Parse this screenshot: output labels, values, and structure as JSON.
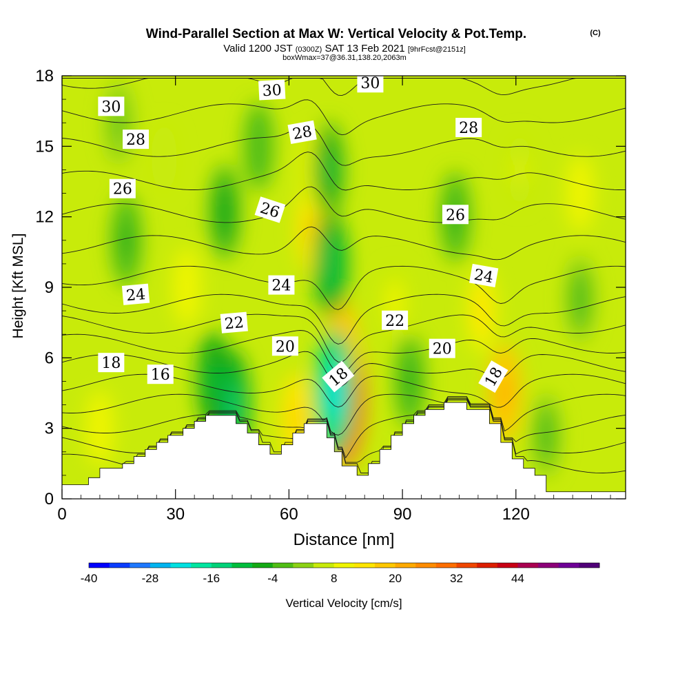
{
  "header": {
    "title": "Wind-Parallel Section at Max W: Vertical Velocity & Pot.Temp.",
    "copyright": "(C)",
    "valid_prefix": "Valid 1200 JST",
    "valid_utc": "(0300Z)",
    "valid_date": "SAT 13 Feb 2021",
    "forecast": "[9hrFcst@2151z]",
    "box_info": "boxWmax=37@36.31,138.20,2063m"
  },
  "chart_data": {
    "type": "heatmap",
    "xlabel": "Distance [nm]",
    "ylabel": "Height [Kft MSL]",
    "xlim": [
      0,
      149
    ],
    "ylim": [
      0,
      18
    ],
    "x_ticks": [
      0,
      30,
      60,
      90,
      120
    ],
    "y_ticks": [
      0,
      3,
      6,
      9,
      12,
      15,
      18
    ],
    "terrain_kft": [
      [
        0,
        0.6
      ],
      [
        7,
        0.6
      ],
      [
        7,
        0.9
      ],
      [
        10,
        0.9
      ],
      [
        10,
        1.3
      ],
      [
        16,
        1.3
      ],
      [
        16,
        1.5
      ],
      [
        19,
        1.5
      ],
      [
        19,
        1.8
      ],
      [
        22,
        1.8
      ],
      [
        22,
        2.1
      ],
      [
        25,
        2.1
      ],
      [
        25,
        2.4
      ],
      [
        28,
        2.4
      ],
      [
        28,
        2.7
      ],
      [
        32,
        2.7
      ],
      [
        32,
        3.0
      ],
      [
        35,
        3.0
      ],
      [
        35,
        3.3
      ],
      [
        38,
        3.3
      ],
      [
        38,
        3.55
      ],
      [
        46,
        3.55
      ],
      [
        46,
        3.2
      ],
      [
        49,
        3.2
      ],
      [
        49,
        2.8
      ],
      [
        52,
        2.8
      ],
      [
        52,
        2.3
      ],
      [
        55,
        2.3
      ],
      [
        55,
        1.9
      ],
      [
        58,
        1.9
      ],
      [
        58,
        2.3
      ],
      [
        61,
        2.3
      ],
      [
        61,
        2.8
      ],
      [
        64,
        2.8
      ],
      [
        64,
        3.2
      ],
      [
        70,
        3.2
      ],
      [
        70,
        2.6
      ],
      [
        72,
        2.6
      ],
      [
        72,
        2.0
      ],
      [
        74,
        2.0
      ],
      [
        74,
        1.4
      ],
      [
        78,
        1.4
      ],
      [
        78,
        1.0
      ],
      [
        81,
        1.0
      ],
      [
        81,
        1.5
      ],
      [
        84,
        1.5
      ],
      [
        84,
        2.1
      ],
      [
        87,
        2.1
      ],
      [
        87,
        2.7
      ],
      [
        90,
        2.7
      ],
      [
        90,
        3.2
      ],
      [
        93,
        3.2
      ],
      [
        93,
        3.55
      ],
      [
        96,
        3.55
      ],
      [
        96,
        3.8
      ],
      [
        101,
        3.8
      ],
      [
        101,
        4.1
      ],
      [
        107,
        4.1
      ],
      [
        107,
        3.8
      ],
      [
        113,
        3.8
      ],
      [
        113,
        3.2
      ],
      [
        116,
        3.2
      ],
      [
        116,
        2.4
      ],
      [
        119,
        2.4
      ],
      [
        119,
        1.7
      ],
      [
        122,
        1.7
      ],
      [
        122,
        1.3
      ],
      [
        125,
        1.3
      ],
      [
        125,
        1.0
      ],
      [
        128,
        1.0
      ],
      [
        128,
        0.3
      ],
      [
        149,
        0.3
      ]
    ],
    "velocity_field_cm_s": {
      "background": 6,
      "blobs": [
        {
          "x": 74.5,
          "y": 4.3,
          "value": 42
        },
        {
          "x": 74,
          "y": 6.3,
          "value": 22
        },
        {
          "x": 66,
          "y": 11.5,
          "value": 16
        },
        {
          "x": 67,
          "y": 14,
          "value": 12
        },
        {
          "x": 72,
          "y": 4.5,
          "value": -24
        },
        {
          "x": 71,
          "y": 10,
          "value": -12
        },
        {
          "x": 70.5,
          "y": 14,
          "value": -9
        },
        {
          "x": 117,
          "y": 4.5,
          "value": 22
        },
        {
          "x": 111,
          "y": 8,
          "value": 14
        },
        {
          "x": 45,
          "y": 4,
          "value": -16
        },
        {
          "x": 40,
          "y": 5,
          "value": -10
        },
        {
          "x": 62,
          "y": 3.4,
          "value": 18
        },
        {
          "x": 33,
          "y": 9,
          "value": 11
        },
        {
          "x": 10,
          "y": 3,
          "value": 10
        },
        {
          "x": 17,
          "y": 11,
          "value": -6
        },
        {
          "x": 43,
          "y": 12.2,
          "value": -8
        },
        {
          "x": 52,
          "y": 15,
          "value": -4
        },
        {
          "x": 104,
          "y": 12,
          "value": -5
        },
        {
          "x": 137,
          "y": 8.5,
          "value": -3
        },
        {
          "x": 137,
          "y": 13,
          "value": 10
        },
        {
          "x": 92,
          "y": 5,
          "value": -6
        },
        {
          "x": 88,
          "y": 8.3,
          "value": 9
        },
        {
          "x": 128,
          "y": 2.7,
          "value": -2
        },
        {
          "x": 121,
          "y": 14,
          "value": 8
        },
        {
          "x": 27,
          "y": 14.5,
          "value": 5
        },
        {
          "x": 15,
          "y": 16,
          "value": -1
        }
      ]
    },
    "pot_temp_contour_labels": [
      {
        "text": "30",
        "x": 13,
        "y": 16.7,
        "rot": 0
      },
      {
        "text": "30",
        "x": 55.5,
        "y": 17.4,
        "rot": -3
      },
      {
        "text": "30",
        "x": 81.5,
        "y": 17.7,
        "rot": 0
      },
      {
        "text": "28",
        "x": 19.5,
        "y": 15.3,
        "rot": 0
      },
      {
        "text": "28",
        "x": 63.5,
        "y": 15.6,
        "rot": -10
      },
      {
        "text": "28",
        "x": 107.5,
        "y": 15.8,
        "rot": 0
      },
      {
        "text": "26",
        "x": 16,
        "y": 13.2,
        "rot": 0
      },
      {
        "text": "26",
        "x": 55,
        "y": 12.3,
        "rot": 18
      },
      {
        "text": "26",
        "x": 104,
        "y": 12.1,
        "rot": 0
      },
      {
        "text": "24",
        "x": 19.5,
        "y": 8.7,
        "rot": -5
      },
      {
        "text": "24",
        "x": 58,
        "y": 9.1,
        "rot": 0
      },
      {
        "text": "24",
        "x": 111.5,
        "y": 9.5,
        "rot": 10
      },
      {
        "text": "22",
        "x": 45.5,
        "y": 7.5,
        "rot": -5
      },
      {
        "text": "22",
        "x": 88,
        "y": 7.6,
        "rot": 0
      },
      {
        "text": "20",
        "x": 59,
        "y": 6.5,
        "rot": 0
      },
      {
        "text": "20",
        "x": 100.5,
        "y": 6.4,
        "rot": 0
      },
      {
        "text": "18",
        "x": 13,
        "y": 5.8,
        "rot": 0
      },
      {
        "text": "18",
        "x": 73,
        "y": 5.2,
        "rot": -40
      },
      {
        "text": "18",
        "x": 114,
        "y": 5.2,
        "rot": -60
      },
      {
        "text": "16",
        "x": 26,
        "y": 5.3,
        "rot": 0
      }
    ],
    "colorbar": {
      "label": "Vertical Velocity [cm/s]",
      "min": -40,
      "step": 4,
      "tick_labels": [
        "-40",
        "-28",
        "-16",
        "-4",
        "8",
        "20",
        "32",
        "44"
      ],
      "colors": [
        "#0000ff",
        "#0a3cff",
        "#1e78ff",
        "#00b4f0",
        "#00e1e1",
        "#00e6a0",
        "#00d278",
        "#00be3c",
        "#14aa14",
        "#50be14",
        "#8cd214",
        "#c8eb0a",
        "#f0f500",
        "#ffe600",
        "#ffc800",
        "#ffaa00",
        "#ff8c00",
        "#ff6e00",
        "#f04600",
        "#dc1e00",
        "#c80014",
        "#aa0050",
        "#8c0078",
        "#6e0096",
        "#500078"
      ]
    }
  }
}
